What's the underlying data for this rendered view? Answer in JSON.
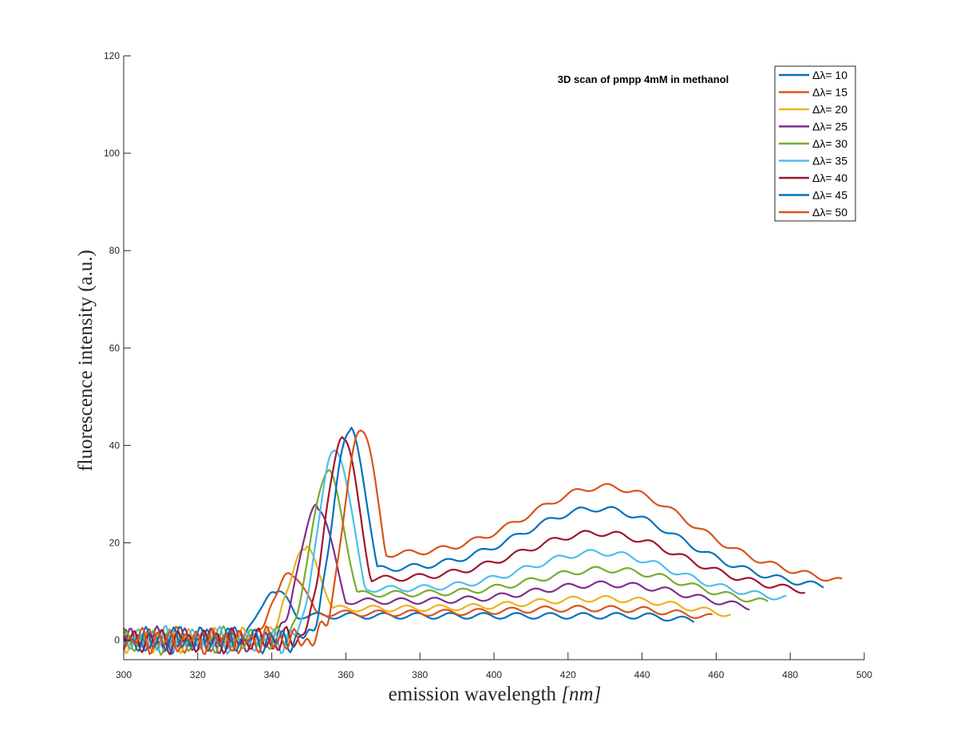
{
  "chart_data": {
    "type": "line",
    "title": "3D scan of pmpp 4mM in methanol",
    "xlabel_text": "emission wavelength ",
    "xlabel_unit": "[nm]",
    "ylabel": "fluorescence intensity (a.u.)",
    "xlim": [
      300,
      500
    ],
    "ylim": [
      -4,
      120
    ],
    "xticks": [
      300,
      320,
      340,
      360,
      380,
      400,
      420,
      440,
      460,
      480,
      500
    ],
    "yticks": [
      0,
      20,
      40,
      60,
      80,
      100,
      120
    ],
    "grid": false,
    "legend_position": "top-right",
    "series": [
      {
        "name": "Δλ= 10",
        "color": "#0072BD",
        "start": 300,
        "end": 454,
        "baseline": 2.5,
        "p1x": 341,
        "p1y": 10,
        "p1w": 5,
        "plateau": 5.0,
        "p2x": 425,
        "p2y": 5.0,
        "p2w": 20,
        "endval": 4.0
      },
      {
        "name": "Δλ= 15",
        "color": "#D95319",
        "start": 300,
        "end": 459,
        "baseline": 2.5,
        "p1x": 345,
        "p1y": 14,
        "p1w": 5,
        "plateau": 5.5,
        "p2x": 425,
        "p2y": 6.5,
        "p2w": 20,
        "endval": 4.5
      },
      {
        "name": "Δλ= 20",
        "color": "#EDB120",
        "start": 300,
        "end": 464,
        "baseline": 2.5,
        "p1x": 349,
        "p1y": 19,
        "p1w": 5,
        "plateau": 6.5,
        "p2x": 428,
        "p2y": 8.5,
        "p2w": 18,
        "endval": 5.0
      },
      {
        "name": "Δλ= 25",
        "color": "#7E2F8E",
        "start": 300,
        "end": 469,
        "baseline": 2.5,
        "p1x": 352,
        "p1y": 28,
        "p1w": 5,
        "plateau": 8.0,
        "p2x": 430,
        "p2y": 11.5,
        "p2w": 18,
        "endval": 6.5
      },
      {
        "name": "Δλ= 30",
        "color": "#77AC30",
        "start": 300,
        "end": 474,
        "baseline": 2.5,
        "p1x": 355,
        "p1y": 35,
        "p1w": 5,
        "plateau": 9.5,
        "p2x": 430,
        "p2y": 14.5,
        "p2w": 18,
        "endval": 7.5
      },
      {
        "name": "Δλ= 35",
        "color": "#4DBEEE",
        "start": 300,
        "end": 479,
        "baseline": 2.0,
        "p1x": 357,
        "p1y": 40,
        "p1w": 5,
        "plateau": 10.5,
        "p2x": 428,
        "p2y": 18,
        "p2w": 18,
        "endval": 8.5
      },
      {
        "name": "Δλ= 40",
        "color": "#A2142F",
        "start": 300,
        "end": 484,
        "baseline": 1.5,
        "p1x": 359,
        "p1y": 42,
        "p1w": 5,
        "plateau": 12.5,
        "p2x": 428,
        "p2y": 22,
        "p2w": 20,
        "endval": 10.0
      },
      {
        "name": "Δλ= 45",
        "color": "#0072BD",
        "start": 300,
        "end": 489,
        "baseline": 1.5,
        "p1x": 361,
        "p1y": 44,
        "p1w": 5,
        "plateau": 14.5,
        "p2x": 428,
        "p2y": 27,
        "p2w": 20,
        "endval": 11.0
      },
      {
        "name": "Δλ= 50",
        "color": "#D95319",
        "start": 300,
        "end": 494,
        "baseline": 1.5,
        "p1x": 364,
        "p1y": 44,
        "p1w": 5,
        "plateau": 17.5,
        "p2x": 430,
        "p2y": 31.5,
        "p2w": 20,
        "endval": 12.0
      }
    ]
  }
}
